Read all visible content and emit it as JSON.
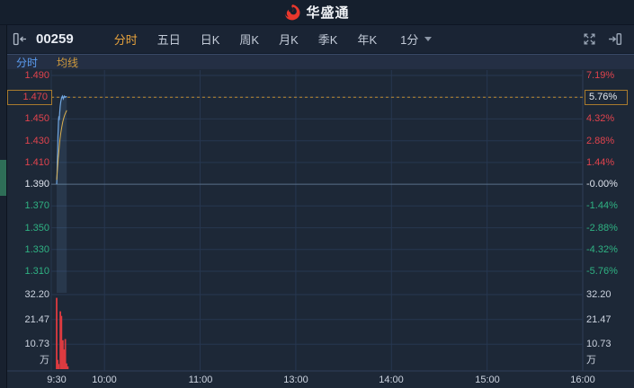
{
  "app": {
    "brand": "华盛通"
  },
  "toolbar": {
    "stock_code": "00259",
    "tabs": [
      {
        "label": "分时",
        "name": "tab-intraday",
        "active": true
      },
      {
        "label": "五日",
        "name": "tab-5day",
        "active": false
      },
      {
        "label": "日K",
        "name": "tab-daily-k",
        "active": false
      },
      {
        "label": "周K",
        "name": "tab-weekly-k",
        "active": false
      },
      {
        "label": "月K",
        "name": "tab-monthly-k",
        "active": false
      },
      {
        "label": "季K",
        "name": "tab-quarterly-k",
        "active": false
      },
      {
        "label": "年K",
        "name": "tab-yearly-k",
        "active": false
      }
    ],
    "period_selector": {
      "label": "1分"
    }
  },
  "subtabs": [
    {
      "label": "分时",
      "name": "subtab-timeline",
      "color": "#5b9cf0"
    },
    {
      "label": "均线",
      "name": "subtab-moving-average",
      "color": "#cf9a3d"
    }
  ],
  "colors": {
    "accent_orange": "#e8a33d",
    "up": "#e0434d",
    "down": "#2fb283",
    "flat": "#dfe4ee",
    "price_line": "#72a8e3",
    "price_fill": "rgba(114,168,227,0.13)",
    "avg_line": "#d9ae4e",
    "volume_bar": "#dd3b40",
    "current_dash": "#c08b2f",
    "brand_red": "#e8372c"
  },
  "chart_data": {
    "type": "line",
    "prev_close": 1.39,
    "current_price": "1.470",
    "current_change_pct": "5.76%",
    "x_axis": {
      "labels": [
        "9:30",
        "10:00",
        "11:00",
        "13:00",
        "14:00",
        "15:00",
        "16:00"
      ],
      "minutes": [
        0,
        30,
        90,
        150,
        210,
        270,
        330
      ],
      "total_minutes": 330
    },
    "y_axis_price": {
      "max": 1.49,
      "min": 1.31,
      "labels": [
        "1.490",
        "1.470",
        "1.450",
        "1.430",
        "1.410",
        "1.390",
        "1.370",
        "1.350",
        "1.330",
        "1.310"
      ]
    },
    "y_axis_pct": {
      "labels": [
        "7.19%",
        "5.76%",
        "4.32%",
        "2.88%",
        "1.44%",
        "-0.00%",
        "-1.44%",
        "-2.88%",
        "-4.32%",
        "-5.76%"
      ]
    },
    "volume_axis": {
      "max": 32.2,
      "labels": [
        "32.20",
        "21.47",
        "10.73"
      ],
      "unit": "万"
    },
    "series": [
      {
        "name": "price",
        "points": [
          [
            0,
            1.39
          ],
          [
            0.2,
            1.397
          ],
          [
            0.4,
            1.41
          ],
          [
            0.6,
            1.42
          ],
          [
            0.8,
            1.4335
          ],
          [
            1.0,
            1.442
          ],
          [
            1.2,
            1.449
          ],
          [
            1.4,
            1.4525
          ],
          [
            1.6,
            1.449
          ],
          [
            1.9,
            1.456
          ],
          [
            2.2,
            1.4615
          ],
          [
            2.6,
            1.466
          ],
          [
            3.1,
            1.4695
          ],
          [
            3.6,
            1.471
          ],
          [
            4.2,
            1.4685
          ],
          [
            4.8,
            1.471
          ],
          [
            5.4,
            1.47
          ],
          [
            6.0,
            1.4705
          ],
          [
            6.3,
            1.47
          ]
        ]
      },
      {
        "name": "average",
        "points": [
          [
            0,
            1.394
          ],
          [
            0.5,
            1.404
          ],
          [
            1.0,
            1.414
          ],
          [
            1.5,
            1.4225
          ],
          [
            2.0,
            1.43
          ],
          [
            2.6,
            1.437
          ],
          [
            3.2,
            1.4425
          ],
          [
            3.8,
            1.447
          ],
          [
            4.4,
            1.4505
          ],
          [
            5.0,
            1.4535
          ],
          [
            5.6,
            1.4555
          ],
          [
            6.3,
            1.458
          ]
        ]
      }
    ],
    "volume_bars": [
      [
        0,
        30.8
      ],
      [
        0.6,
        4.0
      ],
      [
        1.2,
        2.2
      ],
      [
        2.3,
        25.0
      ],
      [
        3.0,
        23.0
      ],
      [
        3.9,
        12.5
      ],
      [
        4.6,
        8.5
      ],
      [
        5.4,
        13.0
      ],
      [
        6.2,
        2.5
      ],
      [
        7.0,
        1.2
      ]
    ]
  }
}
